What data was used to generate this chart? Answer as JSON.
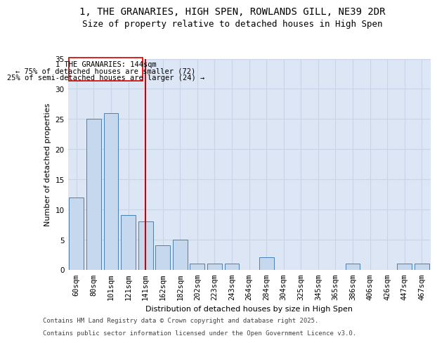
{
  "title_line1": "1, THE GRANARIES, HIGH SPEN, ROWLANDS GILL, NE39 2DR",
  "title_line2": "Size of property relative to detached houses in High Spen",
  "categories": [
    "60sqm",
    "80sqm",
    "101sqm",
    "121sqm",
    "141sqm",
    "162sqm",
    "182sqm",
    "202sqm",
    "223sqm",
    "243sqm",
    "264sqm",
    "284sqm",
    "304sqm",
    "325sqm",
    "345sqm",
    "365sqm",
    "386sqm",
    "406sqm",
    "426sqm",
    "447sqm",
    "467sqm"
  ],
  "values": [
    12,
    25,
    26,
    9,
    8,
    4,
    5,
    1,
    1,
    1,
    0,
    2,
    0,
    0,
    0,
    0,
    1,
    0,
    0,
    1,
    1
  ],
  "bar_color": "#c5d8ee",
  "bar_edge_color": "#4a7fb5",
  "xlabel": "Distribution of detached houses by size in High Spen",
  "ylabel": "Number of detached properties",
  "ylim": [
    0,
    35
  ],
  "yticks": [
    0,
    5,
    10,
    15,
    20,
    25,
    30,
    35
  ],
  "grid_color": "#c8d4e8",
  "background_color": "#dce6f5",
  "vline_color": "#cc0000",
  "vline_index": 4,
  "annotation_text_line1": "1 THE GRANARIES: 144sqm",
  "annotation_text_line2": "← 75% of detached houses are smaller (72)",
  "annotation_text_line3": "25% of semi-detached houses are larger (24) →",
  "footer_line1": "Contains HM Land Registry data © Crown copyright and database right 2025.",
  "footer_line2": "Contains public sector information licensed under the Open Government Licence v3.0.",
  "title_fontsize": 10,
  "subtitle_fontsize": 9,
  "axis_label_fontsize": 8,
  "tick_fontsize": 7.5,
  "annotation_fontsize": 7.5,
  "footer_fontsize": 6.5
}
